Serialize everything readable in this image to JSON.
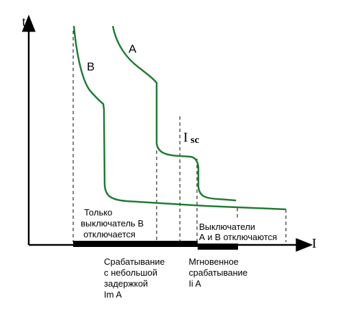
{
  "axes": {
    "y_label": "t",
    "x_label": "I"
  },
  "curves": {
    "a": {
      "label": "A",
      "color": "#1e7a34"
    },
    "b": {
      "label": "B",
      "color": "#1e7a34"
    }
  },
  "isc": {
    "main": "I",
    "sub": "sc"
  },
  "annotations": {
    "only_b": [
      "Только",
      "выключатель В",
      "отключается"
    ],
    "both": [
      "Выключатели",
      "А и В отключаются"
    ],
    "delay": [
      "Срабатывание",
      "с небольшой",
      "задержкой",
      "Im A"
    ],
    "instant": [
      "Мгновенное",
      "срабатывание",
      "Ii A"
    ]
  },
  "colors": {
    "axis": "#000000",
    "curve": "#1e7a34",
    "dashed": "#000000",
    "bar": "#000000"
  }
}
